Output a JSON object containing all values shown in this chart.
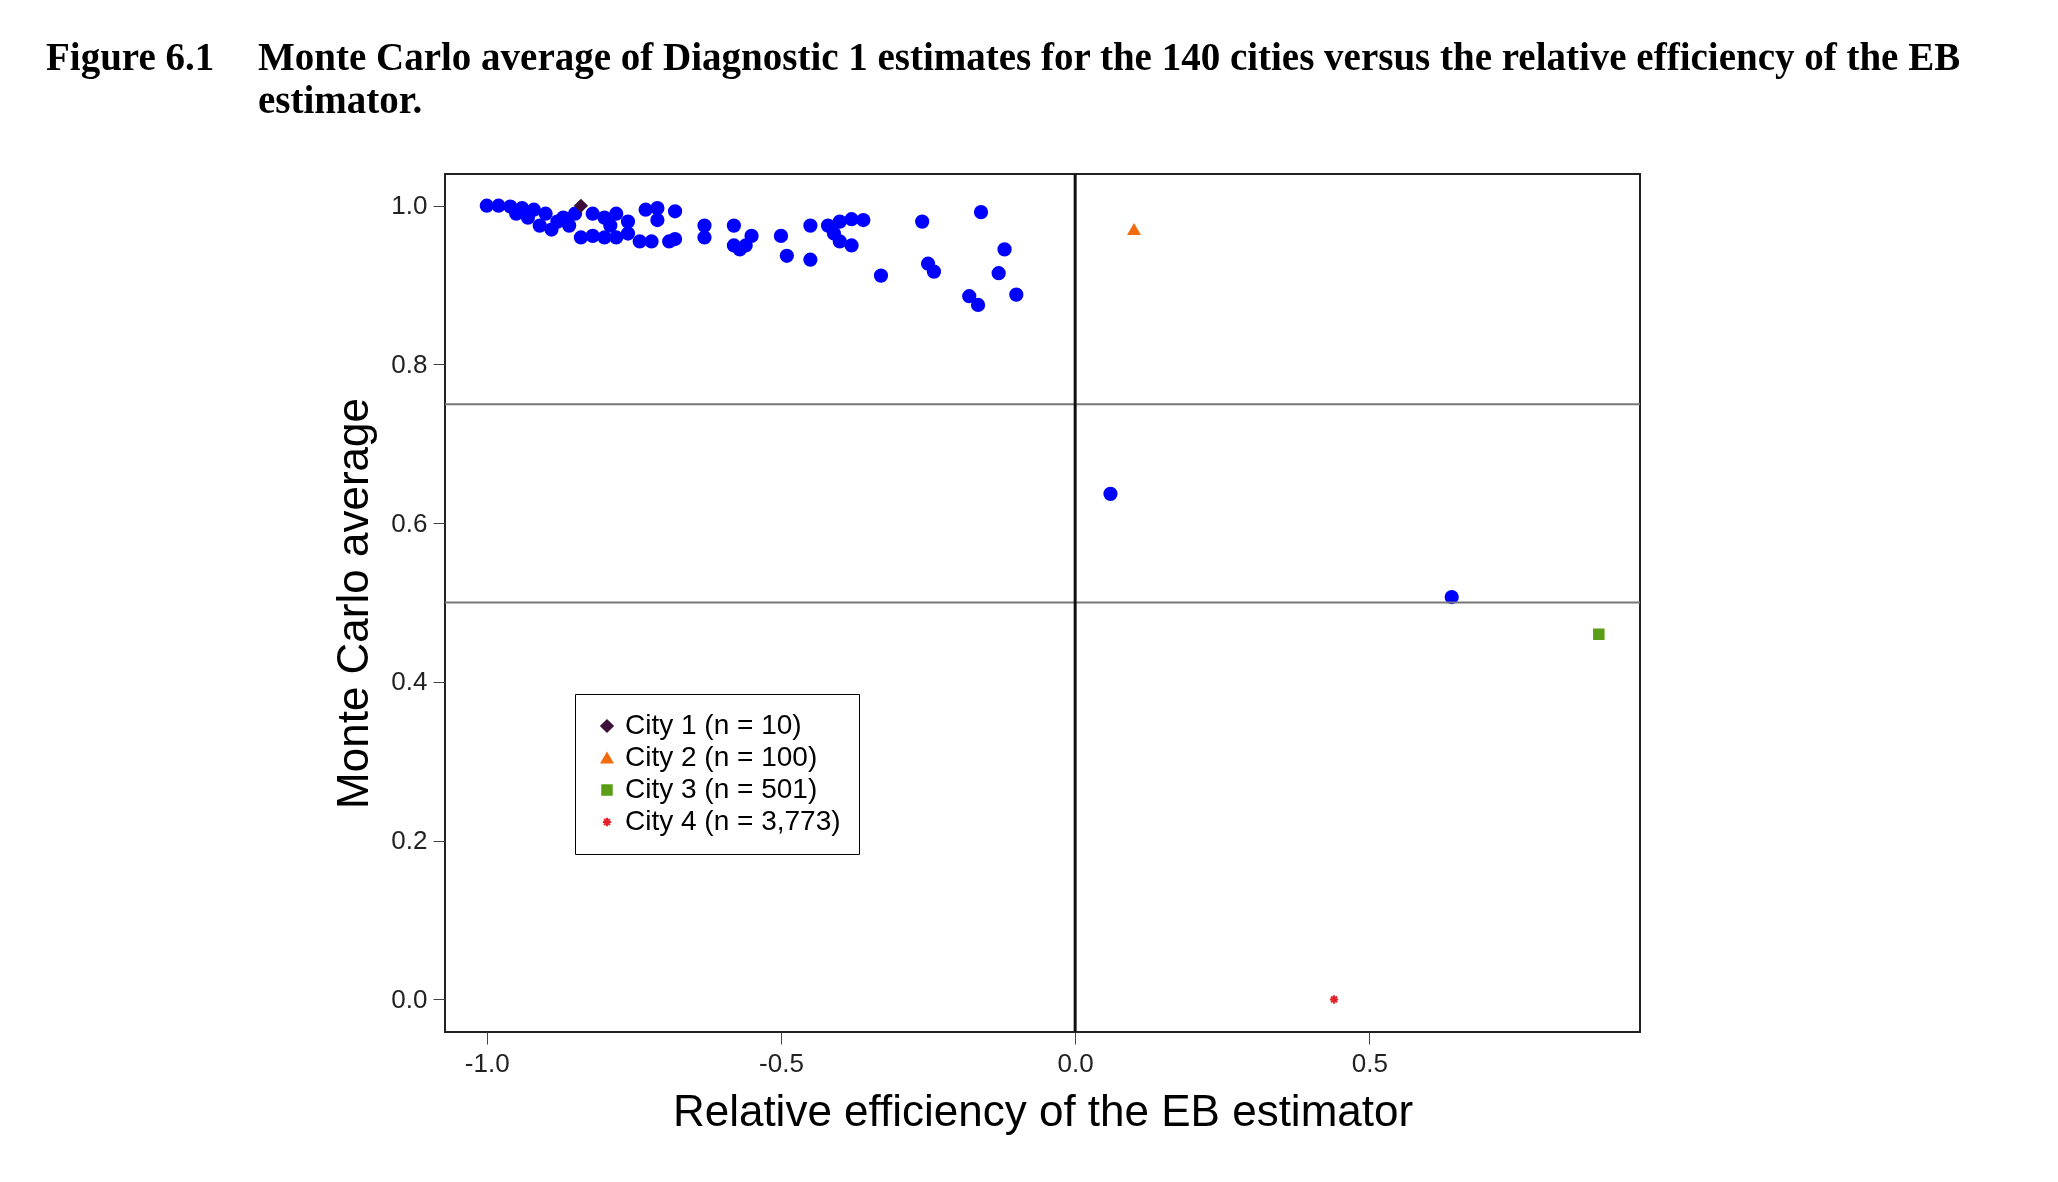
{
  "chart_data": {
    "type": "scatter",
    "title": "Figure 6.1\tMonte Carlo average of Diagnostic 1 estimates for the 140 cities versus the relative efficiency of the EB estimator.",
    "xlabel": "Relative efficiency of the EB estimator",
    "ylabel": "Monte Carlo average",
    "xlim": [
      -1.071,
      0.96
    ],
    "ylim": [
      -0.041,
      1.04
    ],
    "xticks": [
      {
        "value": -1,
        "label": "-1.0"
      },
      -0.5,
      {
        "value": 0,
        "label": "0.0"
      },
      0.5
    ],
    "yticks": [
      {
        "value": 0,
        "label": "0.0"
      },
      0.2,
      0.4,
      0.6,
      0.8,
      {
        "value": 1,
        "label": "1.0"
      }
    ],
    "grid": false,
    "legend": "bottom left",
    "ref_lines": [
      {
        "axis": "y",
        "value": 0.75
      },
      {
        "axis": "y",
        "value": 0.5
      },
      {
        "axis": "x",
        "value": 0
      }
    ],
    "series": [
      {
        "color": "#0000ff",
        "marker": "circle",
        "x": [
          -1.0,
          -0.98,
          -0.96,
          -0.94,
          -0.92,
          -0.9,
          -0.88,
          -0.86,
          -0.95,
          -0.93,
          -0.91,
          -0.89,
          -0.87,
          -0.85,
          -0.82,
          -0.8,
          -0.78,
          -0.76,
          -0.84,
          -0.82,
          -0.8,
          -0.78,
          -0.76,
          -0.74,
          -0.79,
          -0.73,
          -0.71,
          -0.68,
          -0.71,
          -0.72,
          -0.69,
          -0.68,
          -0.63,
          -0.63,
          -0.58,
          -0.58,
          -0.57,
          -0.56,
          -0.55,
          -0.5,
          -0.49,
          -0.45,
          -0.45,
          -0.42,
          -0.4,
          -0.38,
          -0.41,
          -0.4,
          -0.38,
          -0.36,
          -0.33,
          -0.26,
          -0.25,
          -0.24,
          -0.16,
          -0.18,
          -0.165,
          -0.12,
          -0.13,
          -0.1,
          0.06,
          0.64
        ],
        "values": [
          1.0,
          1.0,
          0.999,
          0.997,
          0.995,
          0.99,
          0.98,
          0.975,
          0.99,
          0.985,
          0.975,
          0.97,
          0.985,
          0.99,
          0.99,
          0.985,
          0.99,
          0.98,
          0.96,
          0.962,
          0.96,
          0.96,
          0.965,
          0.955,
          0.975,
          0.995,
          0.997,
          0.993,
          0.982,
          0.955,
          0.955,
          0.958,
          0.975,
          0.96,
          0.975,
          0.95,
          0.945,
          0.95,
          0.962,
          0.962,
          0.937,
          0.932,
          0.975,
          0.975,
          0.98,
          0.983,
          0.965,
          0.955,
          0.95,
          0.982,
          0.912,
          0.98,
          0.927,
          0.917,
          0.992,
          0.886,
          0.875,
          0.945,
          0.915,
          0.888,
          0.637,
          0.507
        ]
      },
      {
        "name": "City 1 (n = 10)",
        "color": "#3d0f3a",
        "marker": "diamond",
        "x": [
          -0.84
        ],
        "values": [
          1.0
        ]
      },
      {
        "name": "City 2 (n = 100)",
        "color": "#f26b0c",
        "marker": "triangle",
        "x": [
          0.1
        ],
        "values": [
          0.97
        ]
      },
      {
        "name": "City 3 (n = 501)",
        "color": "#5a9e17",
        "marker": "square",
        "x": [
          0.89
        ],
        "values": [
          0.46
        ]
      },
      {
        "name": "City 4 (n = 3,773)",
        "color": "#e3202b",
        "marker": "cross",
        "x": [
          0.44
        ],
        "values": [
          0.0
        ]
      }
    ]
  }
}
